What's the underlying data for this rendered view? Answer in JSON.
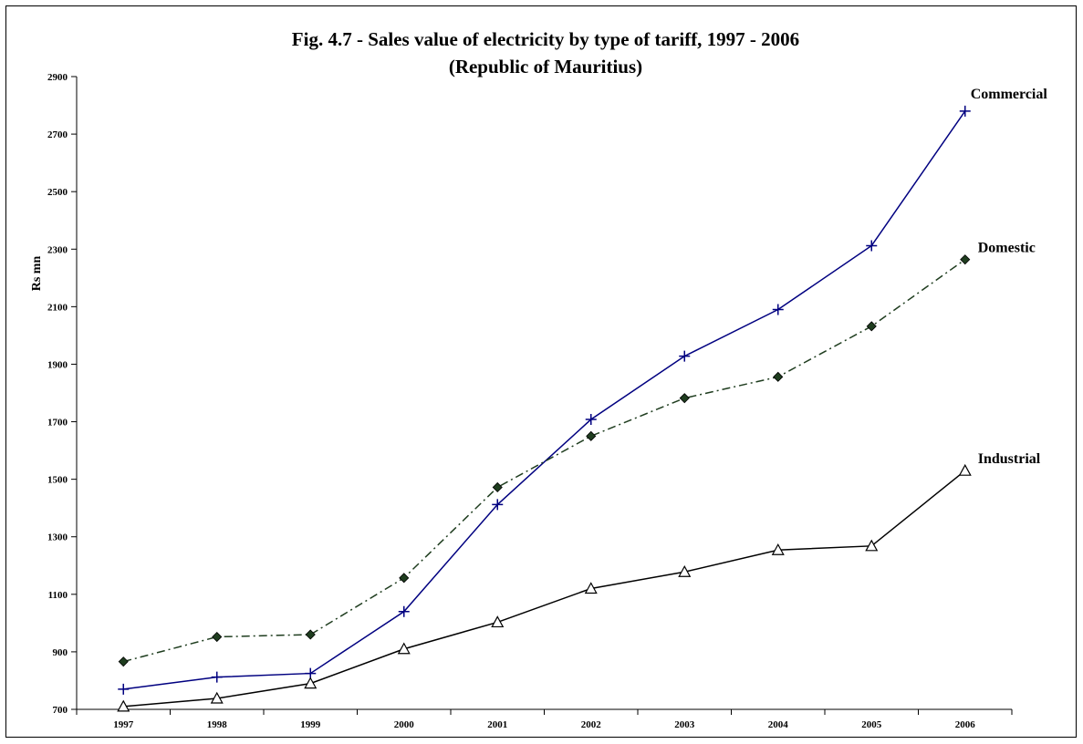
{
  "chart_data": {
    "type": "line",
    "title": "Fig. 4.7 - Sales value of electricity by type of tariff, 1997 - 2006",
    "subtitle": "(Republic of Mauritius)",
    "xlabel": "",
    "ylabel": "Rs mn",
    "ylim": [
      700,
      2900
    ],
    "yticks": [
      700,
      900,
      1100,
      1300,
      1500,
      1700,
      1900,
      2100,
      2300,
      2500,
      2700,
      2900
    ],
    "categories": [
      "1997",
      "1998",
      "1999",
      "2000",
      "2001",
      "2002",
      "2003",
      "2004",
      "2005",
      "2006"
    ],
    "grid": false,
    "legend": "labels at line ends",
    "series": [
      {
        "name": "Commercial",
        "values": [
          770,
          812,
          825,
          1040,
          1412,
          1708,
          1928,
          2090,
          2312,
          2780
        ],
        "color": "#000080",
        "marker": "plus",
        "line": "solid"
      },
      {
        "name": "Domestic",
        "values": [
          866,
          952,
          960,
          1157,
          1472,
          1650,
          1782,
          1856,
          2032,
          2264
        ],
        "color": "#1f3d1f",
        "marker": "diamond",
        "line": "dash-dot"
      },
      {
        "name": "Industrial",
        "values": [
          710,
          738,
          790,
          910,
          1003,
          1120,
          1178,
          1254,
          1268,
          1530
        ],
        "color": "#000000",
        "marker": "triangle",
        "line": "solid"
      }
    ]
  }
}
